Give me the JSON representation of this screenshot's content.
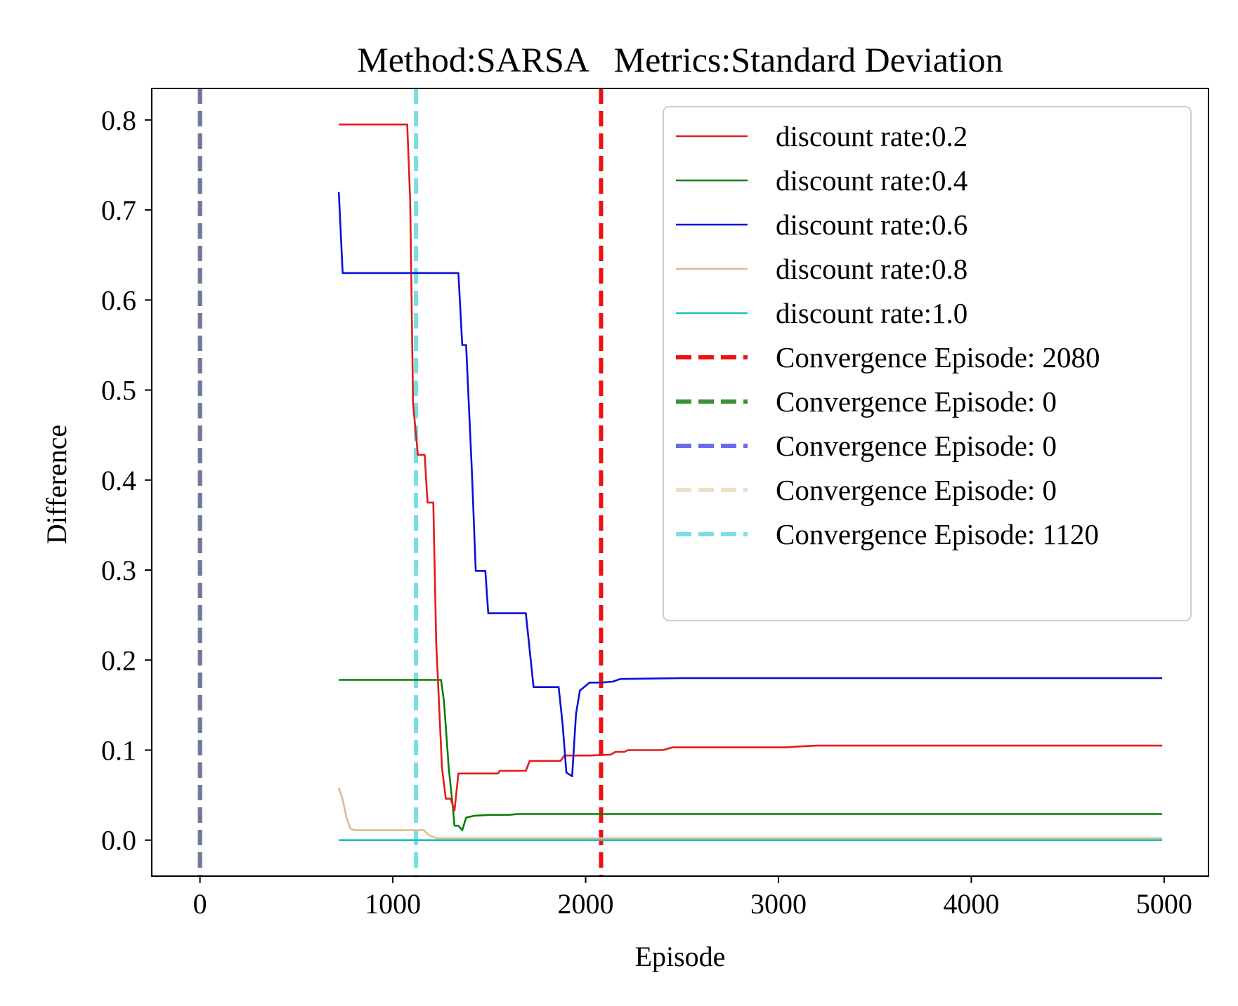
{
  "chart_data": {
    "type": "line",
    "title": "Method:SARSA   Metrics:Standard Deviation",
    "xlabel": "Episode",
    "ylabel": "Difference",
    "xlim": [
      -250,
      5230
    ],
    "ylim": [
      -0.04,
      0.835
    ],
    "xticks": [
      0,
      1000,
      2000,
      3000,
      4000,
      5000
    ],
    "yticks": [
      0.0,
      0.1,
      0.2,
      0.3,
      0.4,
      0.5,
      0.6,
      0.7,
      0.8
    ],
    "grid": false,
    "legend_position": "top-right",
    "series": [
      {
        "name": "discount rate:0.2",
        "color": "#e31a1c",
        "points": [
          [
            720,
            0.795
          ],
          [
            1060,
            0.795
          ],
          [
            1075,
            0.795
          ],
          [
            1090,
            0.71
          ],
          [
            1105,
            0.485
          ],
          [
            1130,
            0.428
          ],
          [
            1165,
            0.428
          ],
          [
            1180,
            0.375
          ],
          [
            1210,
            0.375
          ],
          [
            1225,
            0.22
          ],
          [
            1255,
            0.08
          ],
          [
            1275,
            0.046
          ],
          [
            1300,
            0.046
          ],
          [
            1320,
            0.033
          ],
          [
            1340,
            0.074
          ],
          [
            1545,
            0.074
          ],
          [
            1555,
            0.077
          ],
          [
            1610,
            0.077
          ],
          [
            1690,
            0.077
          ],
          [
            1710,
            0.088
          ],
          [
            1870,
            0.088
          ],
          [
            1890,
            0.094
          ],
          [
            2020,
            0.094
          ],
          [
            2130,
            0.095
          ],
          [
            2155,
            0.098
          ],
          [
            2200,
            0.098
          ],
          [
            2220,
            0.1
          ],
          [
            2400,
            0.1
          ],
          [
            2450,
            0.103
          ],
          [
            3040,
            0.103
          ],
          [
            3100,
            0.104
          ],
          [
            3200,
            0.105
          ],
          [
            4990,
            0.105
          ]
        ]
      },
      {
        "name": "discount rate:0.4",
        "color": "#087d08",
        "points": [
          [
            720,
            0.178
          ],
          [
            1220,
            0.178
          ],
          [
            1250,
            0.178
          ],
          [
            1265,
            0.155
          ],
          [
            1290,
            0.08
          ],
          [
            1310,
            0.04
          ],
          [
            1320,
            0.016
          ],
          [
            1340,
            0.016
          ],
          [
            1360,
            0.011
          ],
          [
            1380,
            0.025
          ],
          [
            1420,
            0.027
          ],
          [
            1500,
            0.028
          ],
          [
            1600,
            0.028
          ],
          [
            1650,
            0.029
          ],
          [
            4990,
            0.029
          ]
        ]
      },
      {
        "name": "discount rate:0.6",
        "color": "#0a10d8",
        "points": [
          [
            720,
            0.72
          ],
          [
            740,
            0.63
          ],
          [
            1270,
            0.63
          ],
          [
            1340,
            0.63
          ],
          [
            1360,
            0.55
          ],
          [
            1380,
            0.55
          ],
          [
            1410,
            0.41
          ],
          [
            1430,
            0.299
          ],
          [
            1480,
            0.299
          ],
          [
            1495,
            0.252
          ],
          [
            1690,
            0.252
          ],
          [
            1730,
            0.17
          ],
          [
            1860,
            0.17
          ],
          [
            1880,
            0.13
          ],
          [
            1900,
            0.075
          ],
          [
            1930,
            0.071
          ],
          [
            1950,
            0.14
          ],
          [
            1970,
            0.166
          ],
          [
            2020,
            0.175
          ],
          [
            2080,
            0.175
          ],
          [
            2140,
            0.176
          ],
          [
            2180,
            0.179
          ],
          [
            2500,
            0.18
          ],
          [
            4990,
            0.18
          ]
        ]
      },
      {
        "name": "discount rate:0.8",
        "color": "#dcbb8d",
        "points": [
          [
            720,
            0.058
          ],
          [
            740,
            0.045
          ],
          [
            760,
            0.025
          ],
          [
            780,
            0.013
          ],
          [
            800,
            0.011
          ],
          [
            1060,
            0.011
          ],
          [
            1120,
            0.011
          ],
          [
            1160,
            0.011
          ],
          [
            1190,
            0.005
          ],
          [
            1230,
            0.002
          ],
          [
            1400,
            0.002
          ],
          [
            4990,
            0.002
          ]
        ]
      },
      {
        "name": "discount rate:1.0",
        "color": "#1fbcc6",
        "points": [
          [
            720,
            0.0
          ],
          [
            4990,
            0.0
          ]
        ]
      }
    ],
    "convergence_lines": [
      {
        "name": "Convergence Episode: 2080",
        "x": 2080,
        "color": "#ee0f0f",
        "opacity": 1.0
      },
      {
        "name": "Convergence Episode: 0",
        "x": 0,
        "color": "#2e8b2e",
        "opacity": 0.95
      },
      {
        "name": "Convergence Episode: 0",
        "x": 0,
        "color": "#5a5af0",
        "opacity": 0.9
      },
      {
        "name": "Convergence Episode: 0",
        "x": 0,
        "color": "#ecdbc0",
        "opacity": 0.9
      },
      {
        "name": "Convergence Episode: 1120",
        "x": 1120,
        "color": "#79dfe2",
        "opacity": 1.0
      }
    ],
    "convergence_overlap_color_at_zero": "#70789a"
  }
}
